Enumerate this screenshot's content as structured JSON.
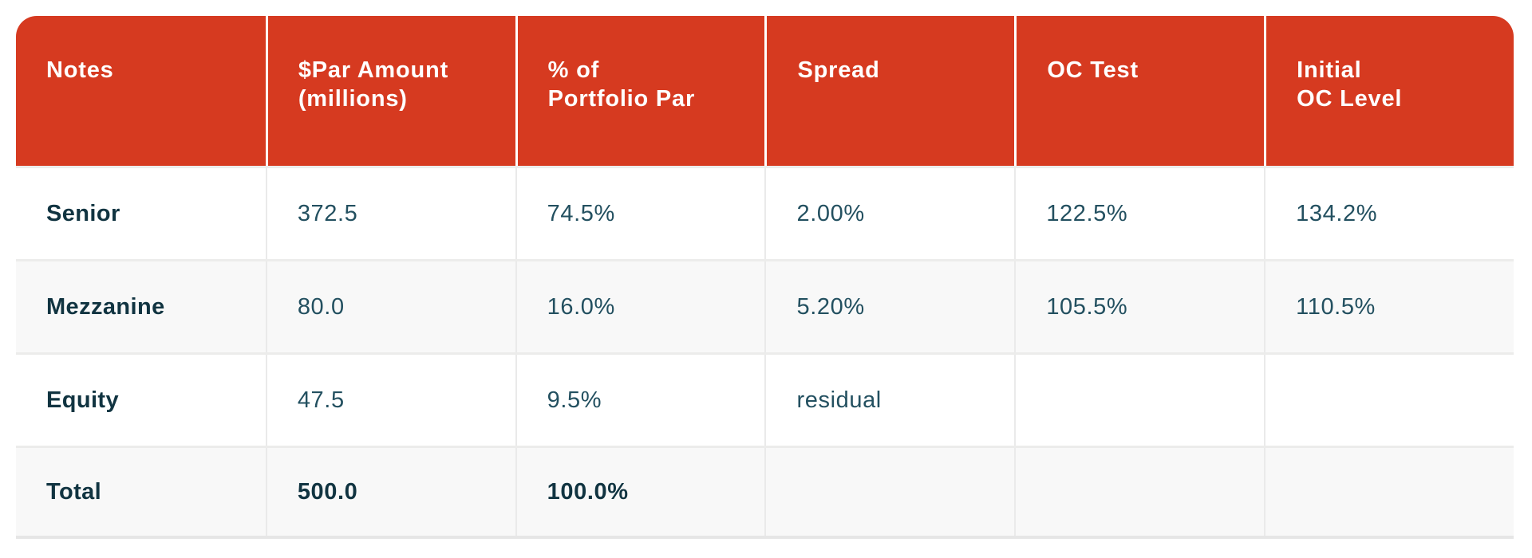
{
  "colors": {
    "header-bg": "#d63a20",
    "header-text": "#ffffff",
    "label-color": "#113441",
    "value-color": "#235060",
    "stripe-bg": "#f8f8f8"
  },
  "chart_data": {
    "type": "table",
    "title": "",
    "columns": [
      "Notes",
      "$Par Amount\n(millions)",
      "% of\nPortfolio Par",
      "Spread",
      "OC Test",
      "Initial\nOC Level"
    ],
    "rows": [
      {
        "label": "Senior",
        "cells": [
          "372.5",
          "74.5%",
          "2.00%",
          "122.5%",
          "134.2%"
        ]
      },
      {
        "label": "Mezzanine",
        "cells": [
          "80.0",
          "16.0%",
          "5.20%",
          "105.5%",
          "110.5%"
        ]
      },
      {
        "label": "Equity",
        "cells": [
          "47.5",
          "9.5%",
          "residual",
          "",
          ""
        ]
      },
      {
        "label": "Total",
        "cells": [
          "500.0",
          "100.0%",
          "",
          "",
          ""
        ],
        "emphasis": "bold"
      }
    ],
    "layout_hints": {
      "striped_rows": [
        "Mezzanine",
        "Total"
      ],
      "header_rounded_top": true,
      "grid": "light-gray vertical and horizontal separators"
    }
  }
}
